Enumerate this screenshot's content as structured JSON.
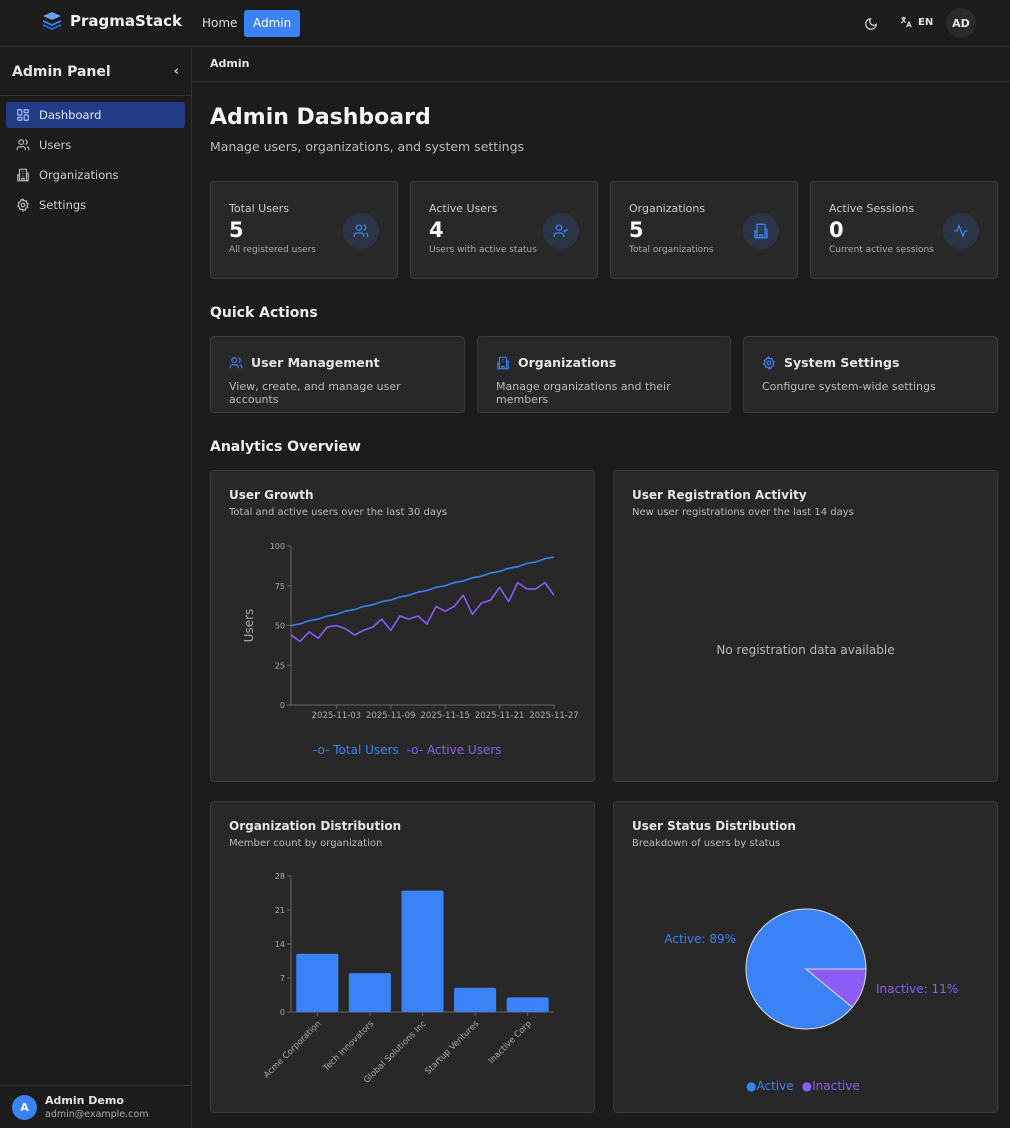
{
  "app": {
    "name": "PragmaStack"
  },
  "topnav": {
    "home": "Home",
    "admin": "Admin",
    "language": "EN",
    "user_initials": "AD"
  },
  "sidebar": {
    "title": "Admin Panel",
    "items": [
      {
        "label": "Dashboard",
        "icon": "dashboard-icon",
        "active": true
      },
      {
        "label": "Users",
        "icon": "users-icon"
      },
      {
        "label": "Organizations",
        "icon": "building-icon"
      },
      {
        "label": "Settings",
        "icon": "gear-icon"
      }
    ],
    "user": {
      "initial": "A",
      "name": "Admin Demo",
      "email": "admin@example.com"
    }
  },
  "breadcrumb": "Admin",
  "page": {
    "title": "Admin Dashboard",
    "subtitle": "Manage users, organizations, and system settings"
  },
  "stats": [
    {
      "label": "Total Users",
      "value": "5",
      "sub": "All registered users",
      "icon": "users-icon"
    },
    {
      "label": "Active Users",
      "value": "4",
      "sub": "Users with active status",
      "icon": "user-check-icon"
    },
    {
      "label": "Organizations",
      "value": "5",
      "sub": "Total organizations",
      "icon": "building-icon"
    },
    {
      "label": "Active Sessions",
      "value": "0",
      "sub": "Current active sessions",
      "icon": "activity-icon"
    }
  ],
  "quick_actions": {
    "title": "Quick Actions",
    "items": [
      {
        "title": "User Management",
        "desc": "View, create, and manage user accounts"
      },
      {
        "title": "Organizations",
        "desc": "Manage organizations and their members"
      },
      {
        "title": "System Settings",
        "desc": "Configure system-wide settings"
      }
    ]
  },
  "analytics": {
    "title": "Analytics Overview",
    "growth": {
      "title": "User Growth",
      "subtitle": "Total and active users over the last 30 days"
    },
    "registration": {
      "title": "User Registration Activity",
      "subtitle": "New user registrations over the last 14 days",
      "empty": "No registration data available"
    },
    "orgs": {
      "title": "Organization Distribution",
      "subtitle": "Member count by organization"
    },
    "status": {
      "title": "User Status Distribution",
      "subtitle": "Breakdown of users by status"
    }
  },
  "colors": {
    "accent": "#3b82f6",
    "purple": "#8b5cf6"
  },
  "chart_data": [
    {
      "type": "line",
      "ylabel": "Users",
      "ylim": [
        0,
        100
      ],
      "yticks": [
        0,
        25,
        50,
        75,
        100
      ],
      "xticks": [
        "2025-11-03",
        "2025-11-09",
        "2025-11-15",
        "2025-11-21",
        "2025-11-27"
      ],
      "x": [
        "2025-10-29",
        "2025-10-30",
        "2025-10-31",
        "2025-11-01",
        "2025-11-02",
        "2025-11-03",
        "2025-11-04",
        "2025-11-05",
        "2025-11-06",
        "2025-11-07",
        "2025-11-08",
        "2025-11-09",
        "2025-11-10",
        "2025-11-11",
        "2025-11-12",
        "2025-11-13",
        "2025-11-14",
        "2025-11-15",
        "2025-11-16",
        "2025-11-17",
        "2025-11-18",
        "2025-11-19",
        "2025-11-20",
        "2025-11-21",
        "2025-11-22",
        "2025-11-23",
        "2025-11-24",
        "2025-11-25",
        "2025-11-26",
        "2025-11-27"
      ],
      "series": [
        {
          "name": "Total Users",
          "color": "#3b82f6",
          "values": [
            50,
            51,
            53,
            54,
            56,
            57,
            59,
            60,
            62,
            63,
            65,
            66,
            68,
            69,
            71,
            72,
            74,
            75,
            77,
            78,
            80,
            81,
            83,
            84,
            86,
            87,
            89,
            90,
            92,
            93
          ]
        },
        {
          "name": "Active Users",
          "color": "#8b5cf6",
          "values": [
            44,
            40,
            46,
            42,
            49,
            50,
            48,
            44,
            47,
            49,
            54,
            47,
            56,
            54,
            56,
            51,
            62,
            59,
            62,
            69,
            57,
            64,
            66,
            74,
            65,
            77,
            73,
            73,
            77,
            69
          ]
        }
      ],
      "legend": "bottom"
    },
    {
      "type": "bar",
      "categories": [
        "Acme Corporation",
        "Tech Innovators",
        "Global Solutions Inc",
        "Startup Ventures",
        "Inactive Corp"
      ],
      "values": [
        12,
        8,
        25,
        5,
        3
      ],
      "ylim": [
        0,
        28
      ],
      "yticks": [
        0,
        7,
        14,
        21,
        28
      ],
      "color": "#3b82f6"
    },
    {
      "type": "pie",
      "slices": [
        {
          "name": "Active",
          "value": 89,
          "label": "Active: 89%",
          "color": "#3b82f6"
        },
        {
          "name": "Inactive",
          "value": 11,
          "label": "Inactive: 11%",
          "color": "#8b5cf6"
        }
      ],
      "legend": "bottom"
    }
  ]
}
